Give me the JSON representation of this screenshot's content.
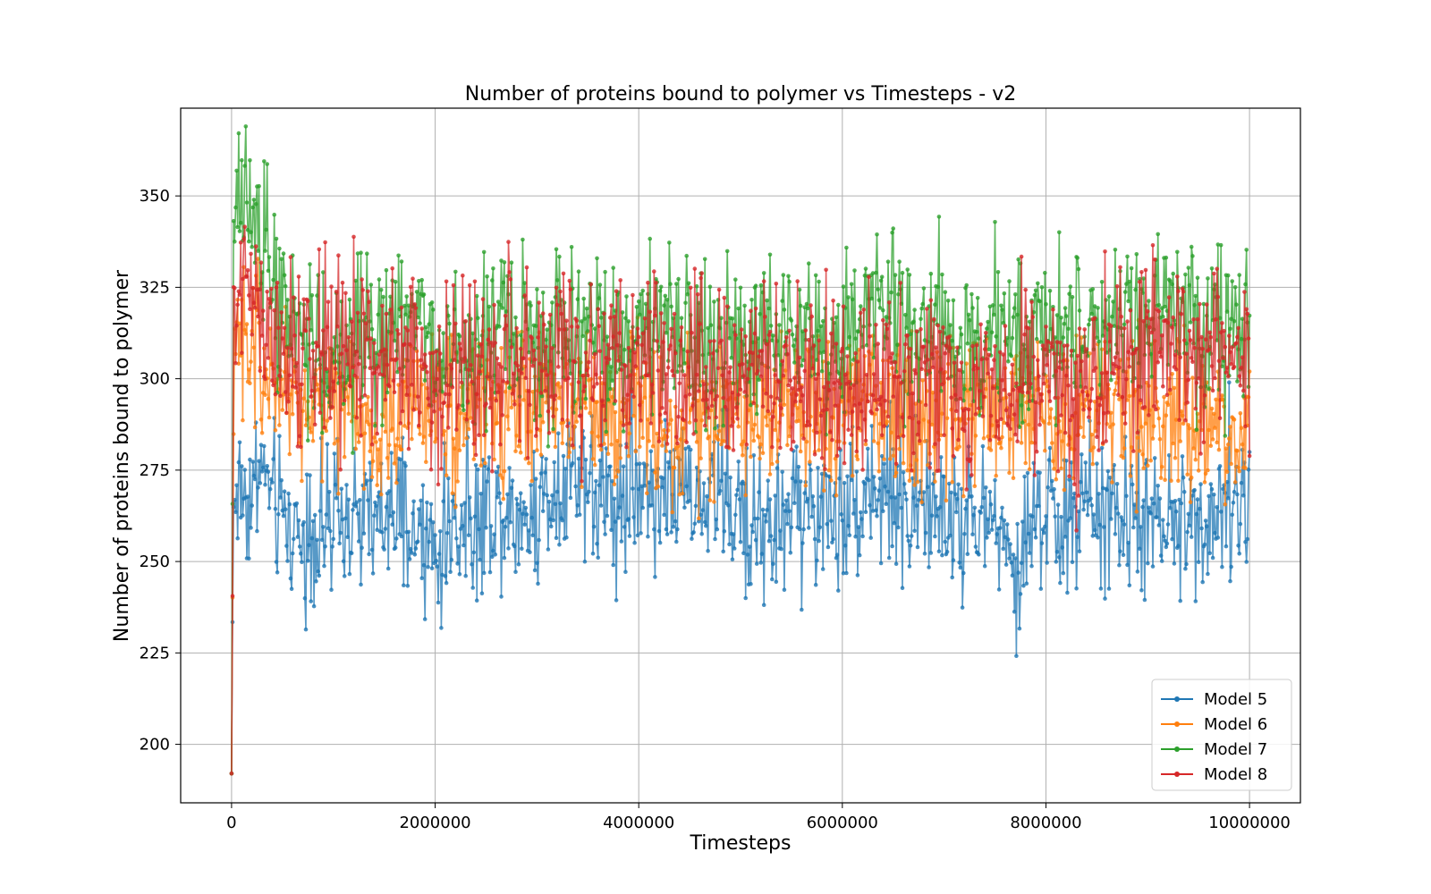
{
  "chart_data": {
    "type": "line",
    "title": "Number of proteins bound to polymer vs Timesteps - v2",
    "xlabel": "Timesteps",
    "ylabel": "Number of proteins bound to polymer",
    "xlim": [
      -500000,
      10500000
    ],
    "ylim": [
      184,
      374
    ],
    "x_ticks": [
      0,
      2000000,
      4000000,
      6000000,
      8000000,
      10000000
    ],
    "x_tick_labels": [
      "0",
      "2000000",
      "4000000",
      "6000000",
      "8000000",
      "10000000"
    ],
    "y_ticks": [
      200,
      225,
      250,
      275,
      300,
      325,
      350
    ],
    "y_tick_labels": [
      "200",
      "225",
      "250",
      "275",
      "300",
      "325",
      "350"
    ],
    "grid": true,
    "legend_position": "lower-right",
    "series": [
      {
        "name": "Model 5",
        "color": "#1f77b4",
        "start": 192,
        "x": [
          0,
          20000,
          100000,
          200000,
          300000,
          400000,
          500000,
          600000,
          800000,
          1000000,
          1200000,
          1400000,
          1600000,
          1800000,
          2000000,
          2200000,
          2400000,
          2600000,
          2800000,
          3000000,
          3200000,
          3400000,
          3600000,
          3800000,
          4000000,
          4200000,
          4400000,
          4600000,
          4800000,
          5000000,
          5200000,
          5400000,
          5600000,
          5800000,
          6000000,
          6200000,
          6400000,
          6600000,
          6800000,
          7000000,
          7200000,
          7400000,
          7600000,
          7700000,
          7800000,
          8000000,
          8200000,
          8400000,
          8600000,
          8800000,
          9000000,
          9200000,
          9400000,
          9600000,
          9800000,
          10000000
        ],
        "values": [
          192,
          268,
          270,
          268,
          275,
          268,
          262,
          258,
          260,
          258,
          262,
          260,
          262,
          256,
          252,
          260,
          262,
          265,
          262,
          264,
          272,
          278,
          268,
          266,
          272,
          270,
          268,
          266,
          270,
          262,
          260,
          262,
          266,
          262,
          264,
          268,
          270,
          266,
          264,
          262,
          262,
          262,
          258,
          238,
          258,
          264,
          262,
          264,
          264,
          260,
          260,
          258,
          262,
          264,
          264,
          266
        ],
        "amp": 10
      },
      {
        "name": "Model 6",
        "color": "#ff7f0e",
        "start": 192,
        "x": [
          0,
          20000,
          100000,
          200000,
          300000,
          400000,
          500000,
          600000,
          800000,
          1000000,
          1200000,
          1400000,
          1600000,
          1800000,
          2000000,
          2200000,
          2400000,
          2600000,
          2800000,
          3000000,
          3200000,
          3400000,
          3600000,
          3800000,
          4000000,
          4200000,
          4400000,
          4600000,
          4800000,
          5000000,
          5200000,
          5400000,
          5600000,
          5800000,
          6000000,
          6200000,
          6400000,
          6600000,
          6800000,
          7000000,
          7200000,
          7400000,
          7600000,
          7800000,
          8000000,
          8200000,
          8400000,
          8600000,
          8800000,
          9000000,
          9200000,
          9400000,
          9600000,
          9800000,
          10000000
        ],
        "values": [
          192,
          305,
          315,
          310,
          300,
          298,
          296,
          292,
          290,
          290,
          292,
          288,
          290,
          294,
          292,
          290,
          292,
          290,
          292,
          292,
          294,
          294,
          290,
          292,
          294,
          290,
          292,
          290,
          288,
          292,
          290,
          292,
          292,
          290,
          292,
          294,
          290,
          290,
          288,
          290,
          290,
          292,
          292,
          290,
          290,
          290,
          294,
          292,
          290,
          288,
          290,
          288,
          286,
          284,
          290
        ],
        "amp": 10
      },
      {
        "name": "Model 7",
        "color": "#2ca02c",
        "start": 192,
        "x": [
          0,
          20000,
          100000,
          200000,
          300000,
          400000,
          500000,
          600000,
          800000,
          1000000,
          1200000,
          1400000,
          1600000,
          1800000,
          2000000,
          2200000,
          2400000,
          2600000,
          2800000,
          3000000,
          3200000,
          3400000,
          3600000,
          3800000,
          4000000,
          4200000,
          4400000,
          4600000,
          4800000,
          5000000,
          5200000,
          5400000,
          5600000,
          5800000,
          6000000,
          6200000,
          6400000,
          6600000,
          6800000,
          7000000,
          7200000,
          7400000,
          7600000,
          7800000,
          8000000,
          8200000,
          8400000,
          8600000,
          8800000,
          9000000,
          9200000,
          9400000,
          9600000,
          9800000,
          10000000
        ],
        "values": [
          192,
          340,
          352,
          348,
          335,
          325,
          320,
          318,
          312,
          308,
          310,
          312,
          316,
          318,
          308,
          306,
          308,
          310,
          312,
          310,
          314,
          312,
          316,
          312,
          316,
          314,
          312,
          310,
          312,
          308,
          310,
          308,
          310,
          308,
          310,
          318,
          320,
          316,
          320,
          316,
          312,
          314,
          310,
          312,
          314,
          312,
          316,
          312,
          312,
          316,
          322,
          316,
          314,
          312,
          308
        ],
        "amp": 11
      },
      {
        "name": "Model 8",
        "color": "#d62728",
        "start": 192,
        "x": [
          0,
          20000,
          100000,
          200000,
          300000,
          400000,
          500000,
          600000,
          800000,
          1000000,
          1200000,
          1400000,
          1600000,
          1800000,
          2000000,
          2200000,
          2400000,
          2600000,
          2800000,
          3000000,
          3200000,
          3400000,
          3600000,
          3800000,
          4000000,
          4200000,
          4400000,
          4600000,
          4800000,
          5000000,
          5200000,
          5400000,
          5600000,
          5800000,
          6000000,
          6200000,
          6400000,
          6600000,
          6800000,
          7000000,
          7200000,
          7400000,
          7600000,
          7800000,
          8000000,
          8200000,
          8400000,
          8600000,
          8800000,
          9000000,
          9200000,
          9400000,
          9600000,
          9800000,
          10000000
        ],
        "values": [
          192,
          318,
          322,
          318,
          315,
          310,
          308,
          306,
          304,
          304,
          306,
          308,
          306,
          304,
          300,
          302,
          302,
          304,
          306,
          304,
          306,
          304,
          306,
          306,
          304,
          302,
          302,
          302,
          300,
          300,
          302,
          300,
          302,
          298,
          300,
          300,
          302,
          300,
          300,
          298,
          298,
          298,
          296,
          298,
          302,
          300,
          300,
          304,
          306,
          308,
          312,
          310,
          308,
          306,
          300
        ],
        "amp": 12
      }
    ]
  }
}
